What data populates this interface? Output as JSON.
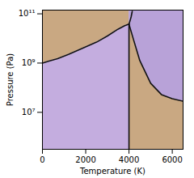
{
  "chart_data": {
    "type": "area",
    "xlabel": "Temperature (K)",
    "ylabel": "Pressure (Pa)",
    "log": "y",
    "xlim": [
      0,
      6500
    ],
    "xticks": [
      0,
      2000,
      4000,
      6000
    ],
    "ylim": [
      316227.7660168,
      141253754462.2756
    ],
    "yticks": [
      {
        "value": 10000000,
        "label": "10⁷"
      },
      {
        "value": 1000000000,
        "label": "10⁹"
      },
      {
        "value": 100000000000,
        "label": "10¹¹"
      }
    ],
    "series": [
      {
        "type": "area",
        "color": "#c9a882",
        "x": [
          0,
          300,
          700,
          1200,
          1800,
          2500,
          3000,
          3500,
          3800,
          4000
        ],
        "values": [
          1000000000,
          1202264435,
          1513561248,
          2238721139,
          3801893963,
          7079457844,
          12589254118,
          23988329190,
          33113112148,
          38018939632
        ],
        "base": 141253754462.2756
      },
      {
        "type": "area",
        "color": "#c4addf",
        "x": [
          0,
          300,
          700,
          1200,
          1800,
          2500,
          3000,
          3500,
          3800,
          4000
        ],
        "values": [
          1000000000,
          1202264435,
          1513561248,
          2238721139,
          3801893963,
          7079457844,
          12589254118,
          23988329190,
          33113112148,
          38018939632
        ],
        "base": 316227.7660168
      },
      {
        "type": "area",
        "color": "#c9a882",
        "x": [
          4000,
          4200,
          4500,
          5000,
          5500,
          6000,
          6500
        ],
        "values": [
          38018939632,
          9549925860,
          1258925412,
          151356124.8,
          52480746.02,
          35481338.92,
          28183829.31
        ],
        "base": 316227.7660168
      },
      {
        "type": "area",
        "color": "#b8a2d8",
        "x": [
          4000,
          4200,
          4500,
          5000,
          5500,
          6000,
          6500
        ],
        "values": [
          38018939632,
          9549925860,
          1258925412,
          151356124.8,
          52480746.02,
          35481338.92,
          28183829.31
        ],
        "base": 141253754462.2756
      },
      {
        "type": "line",
        "color": "#111111",
        "x": [
          4000,
          4000
        ],
        "values": [
          316227.7660168,
          38018939632
        ]
      },
      {
        "type": "line",
        "color": "#111111",
        "x": [
          0,
          300,
          700,
          1200,
          1800,
          2500,
          3000,
          3500,
          3800,
          4000
        ],
        "values": [
          1000000000,
          1202264435,
          1513561248,
          2238721139,
          3801893963,
          7079457844,
          12589254118,
          23988329190,
          33113112148,
          38018939632
        ]
      },
      {
        "type": "line",
        "color": "#111111",
        "x": [
          4000,
          4050,
          4100,
          4150
        ],
        "values": [
          38018939632,
          52480746025,
          75857757503,
          125892541179
        ]
      },
      {
        "type": "line",
        "color": "#111111",
        "x": [
          4000,
          4200,
          4500,
          5000,
          5500,
          6000,
          6500
        ],
        "values": [
          38018939632,
          9549925860,
          1258925412,
          151356124.8,
          52480746.02,
          35481338.92,
          28183829.31
        ]
      }
    ]
  }
}
